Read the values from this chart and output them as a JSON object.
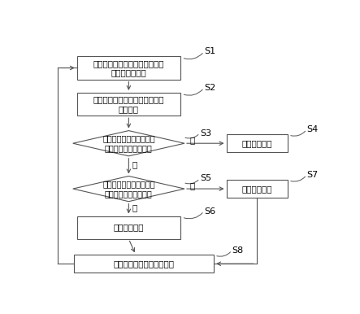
{
  "background_color": "#ffffff",
  "box_color": "#ffffff",
  "box_edge_color": "#555555",
  "arrow_color": "#555555",
  "text_color": "#000000",
  "font_size": 7.5,
  "label_font_size": 8.0,
  "s1_text": "对蓝牙耳机进行初始化，获取第\n一事件触发时间",
  "s2_text": "实时监听触摸动作，并获取第一\n触发时刻",
  "s3_text": "判断第一事件触发时间内\n是否有第二次触摸动作",
  "s4_text": "触发第一事件",
  "s5_text": "判断第二事件触发时间内\n是否有第三次触摸动作",
  "s6_text": "触发第二事件",
  "s7_text": "触发第三事件",
  "s8_text": "迭代更新第一时间触发时间",
  "yes": "是",
  "no": "否",
  "labels": [
    "S1",
    "S2",
    "S3",
    "S4",
    "S5",
    "S6",
    "S7",
    "S8"
  ]
}
